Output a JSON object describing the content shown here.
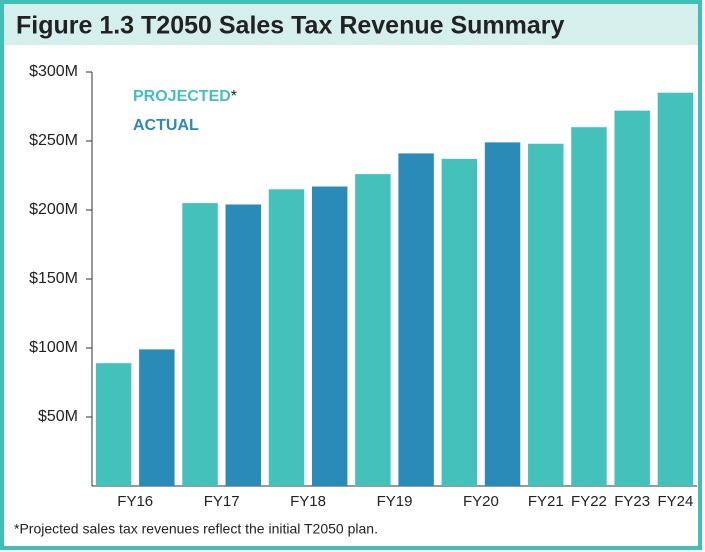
{
  "chart_data": {
    "type": "bar",
    "title": "Figure 1.3 T2050 Sales Tax Revenue Summary",
    "categories": [
      "FY16",
      "FY17",
      "FY18",
      "FY19",
      "FY20",
      "FY21",
      "FY22",
      "FY23",
      "FY24"
    ],
    "series": [
      {
        "name": "PROJECTED",
        "color": "#45c1bb",
        "values": [
          89,
          205,
          215,
          226,
          237,
          248,
          260,
          272,
          285
        ]
      },
      {
        "name": "ACTUAL",
        "color": "#2a8ab8",
        "values": [
          99,
          204,
          217,
          241,
          249,
          null,
          null,
          null,
          null
        ]
      }
    ],
    "legend_marker": "*",
    "footnote": "*Projected sales tax revenues reflect the initial T2050 plan.",
    "ylim": [
      0,
      300
    ],
    "yticks": [
      {
        "value": 50,
        "label": "$50M"
      },
      {
        "value": 100,
        "label": "$100M"
      },
      {
        "value": 150,
        "label": "$150M"
      },
      {
        "value": 200,
        "label": "$200M"
      },
      {
        "value": 250,
        "label": "$250M"
      },
      {
        "value": 300,
        "label": "$300M"
      }
    ],
    "grid": false
  }
}
